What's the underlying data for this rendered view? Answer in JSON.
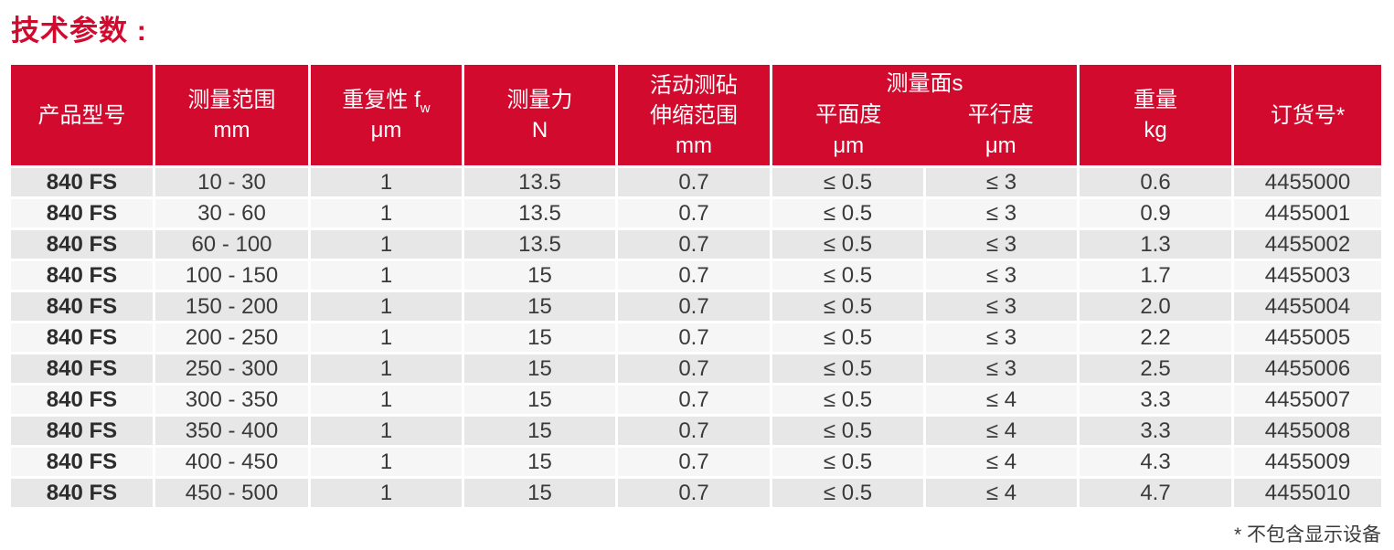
{
  "title": "技术参数 :",
  "colors": {
    "accent_red": "#d20a2e",
    "row_dark": "#e7e7e7",
    "row_light": "#f6f6f6",
    "body_text": "#3a3a3a"
  },
  "table": {
    "column_ids": [
      "model",
      "range",
      "repeatability",
      "force",
      "anvil_travel",
      "flatness",
      "parallelism",
      "weight",
      "order_no"
    ],
    "headers": {
      "model": {
        "line1": "产品型号"
      },
      "range": {
        "line1": "测量范围",
        "unit": "mm"
      },
      "repeatability": {
        "line1": "重复性 f",
        "sub": "w",
        "unit": "μm"
      },
      "force": {
        "line1": "测量力",
        "unit": "N"
      },
      "anvil": {
        "line1": "活动测砧",
        "line2": "伸缩范围",
        "unit": "mm"
      },
      "faces": {
        "group": "测量面s",
        "col1": "平面度",
        "col1_unit": "μm",
        "col2": "平行度",
        "col2_unit": "μm"
      },
      "weight": {
        "line1": "重量",
        "unit": "kg"
      },
      "order": {
        "line1": "订货号*"
      }
    },
    "rows": [
      [
        "840 FS",
        "10 - 30",
        "1",
        "13.5",
        "0.7",
        "≤ 0.5",
        "≤ 3",
        "0.6",
        "4455000"
      ],
      [
        "840 FS",
        "30 - 60",
        "1",
        "13.5",
        "0.7",
        "≤ 0.5",
        "≤ 3",
        "0.9",
        "4455001"
      ],
      [
        "840 FS",
        "60 - 100",
        "1",
        "13.5",
        "0.7",
        "≤ 0.5",
        "≤ 3",
        "1.3",
        "4455002"
      ],
      [
        "840 FS",
        "100 - 150",
        "1",
        "15",
        "0.7",
        "≤ 0.5",
        "≤ 3",
        "1.7",
        "4455003"
      ],
      [
        "840 FS",
        "150 - 200",
        "1",
        "15",
        "0.7",
        "≤ 0.5",
        "≤ 3",
        "2.0",
        "4455004"
      ],
      [
        "840 FS",
        "200 - 250",
        "1",
        "15",
        "0.7",
        "≤ 0.5",
        "≤ 3",
        "2.2",
        "4455005"
      ],
      [
        "840 FS",
        "250 - 300",
        "1",
        "15",
        "0.7",
        "≤ 0.5",
        "≤ 3",
        "2.5",
        "4455006"
      ],
      [
        "840 FS",
        "300 - 350",
        "1",
        "15",
        "0.7",
        "≤ 0.5",
        "≤ 4",
        "3.3",
        "4455007"
      ],
      [
        "840 FS",
        "350 - 400",
        "1",
        "15",
        "0.7",
        "≤ 0.5",
        "≤ 4",
        "3.3",
        "4455008"
      ],
      [
        "840 FS",
        "400 - 450",
        "1",
        "15",
        "0.7",
        "≤ 0.5",
        "≤ 4",
        "4.3",
        "4455009"
      ],
      [
        "840 FS",
        "450 - 500",
        "1",
        "15",
        "0.7",
        "≤ 0.5",
        "≤ 4",
        "4.7",
        "4455010"
      ]
    ]
  },
  "footnote": "* 不包含显示设备"
}
